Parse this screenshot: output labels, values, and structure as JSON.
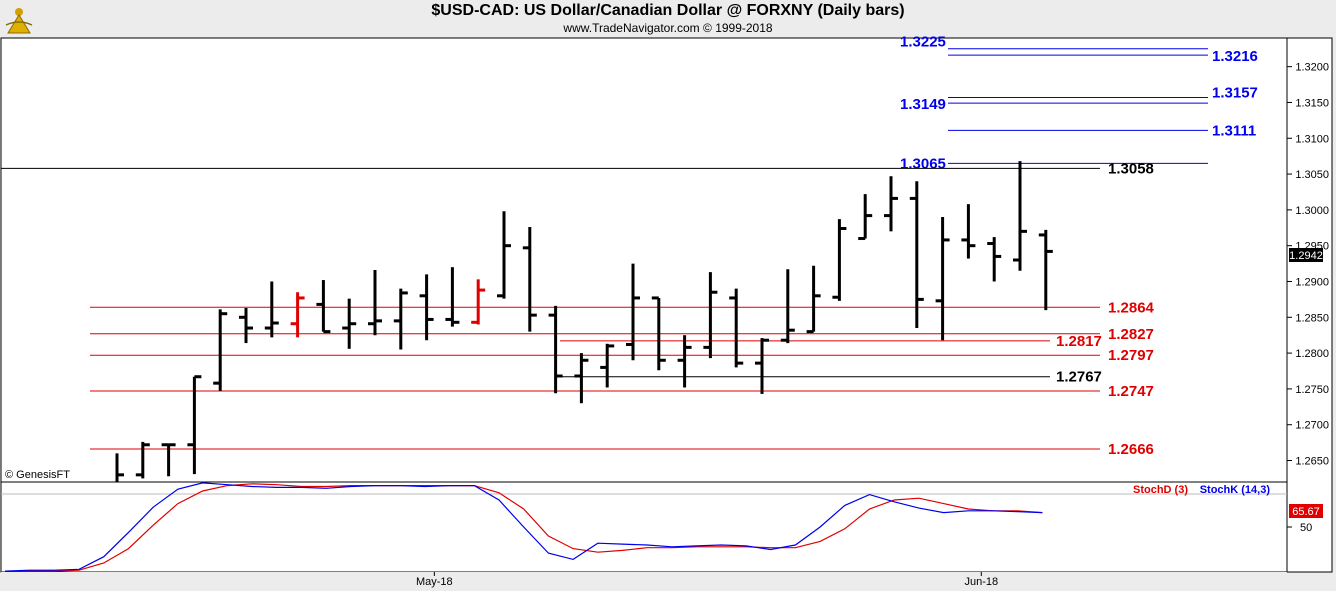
{
  "header": {
    "title": "$USD-CAD:  US Dollar/Canadian Dollar @ FORXNY  (Daily bars)",
    "subtitle": "www.TradeNavigator.com © 1999-2018"
  },
  "watermark": "© GenesisFT",
  "chart_data": [
    {
      "type": "ohlc",
      "title": "$USD-CAD:  US Dollar/Canadian Dollar @ FORXNY  (Daily bars)",
      "ylim": [
        1.262,
        1.324
      ],
      "yticks": [
        1.265,
        1.27,
        1.275,
        1.28,
        1.285,
        1.29,
        1.295,
        1.3,
        1.305,
        1.31,
        1.315,
        1.32
      ],
      "x_labels": [
        {
          "label": "May-18",
          "bar": 12.3
        },
        {
          "label": "Jun-18",
          "bar": 33.5
        }
      ],
      "last_price": "1.2942",
      "bars": [
        {
          "o": 1.26,
          "h": 1.266,
          "l": 1.26,
          "c": 1.263,
          "color": "#000000"
        },
        {
          "o": 1.263,
          "h": 1.2676,
          "l": 1.2625,
          "c": 1.2672,
          "color": "#000000"
        },
        {
          "o": 1.2672,
          "h": 1.2673,
          "l": 1.2628,
          "c": 1.2672,
          "color": "#000000"
        },
        {
          "o": 1.2672,
          "h": 1.2767,
          "l": 1.2631,
          "c": 1.2767,
          "color": "#000000"
        },
        {
          "o": 1.2758,
          "h": 1.2861,
          "l": 1.2747,
          "c": 1.2855,
          "color": "#000000"
        },
        {
          "o": 1.285,
          "h": 1.2863,
          "l": 1.2814,
          "c": 1.2835,
          "color": "#000000"
        },
        {
          "o": 1.2835,
          "h": 1.29,
          "l": 1.2822,
          "c": 1.2842,
          "color": "#000000"
        },
        {
          "o": 1.2841,
          "h": 1.2885,
          "l": 1.2822,
          "c": 1.2877,
          "color": "#E00000"
        },
        {
          "o": 1.2868,
          "h": 1.2902,
          "l": 1.283,
          "c": 1.283,
          "color": "#000000"
        },
        {
          "o": 1.2835,
          "h": 1.2876,
          "l": 1.2806,
          "c": 1.2841,
          "color": "#000000"
        },
        {
          "o": 1.2841,
          "h": 1.2916,
          "l": 1.2825,
          "c": 1.2845,
          "color": "#000000"
        },
        {
          "o": 1.2845,
          "h": 1.289,
          "l": 1.2805,
          "c": 1.2884,
          "color": "#000000"
        },
        {
          "o": 1.288,
          "h": 1.291,
          "l": 1.2818,
          "c": 1.2847,
          "color": "#000000"
        },
        {
          "o": 1.2847,
          "h": 1.292,
          "l": 1.2837,
          "c": 1.2843,
          "color": "#000000"
        },
        {
          "o": 1.2843,
          "h": 1.2903,
          "l": 1.284,
          "c": 1.2888,
          "color": "#E00000"
        },
        {
          "o": 1.288,
          "h": 1.2998,
          "l": 1.2876,
          "c": 1.295,
          "color": "#000000"
        },
        {
          "o": 1.2947,
          "h": 1.2976,
          "l": 1.283,
          "c": 1.2853,
          "color": "#000000"
        },
        {
          "o": 1.2853,
          "h": 1.2866,
          "l": 1.2744,
          "c": 1.2768,
          "color": "#000000"
        },
        {
          "o": 1.2768,
          "h": 1.28,
          "l": 1.273,
          "c": 1.279,
          "color": "#000000"
        },
        {
          "o": 1.278,
          "h": 1.2813,
          "l": 1.2752,
          "c": 1.281,
          "color": "#000000"
        },
        {
          "o": 1.2812,
          "h": 1.2925,
          "l": 1.279,
          "c": 1.2877,
          "color": "#000000"
        },
        {
          "o": 1.2877,
          "h": 1.2877,
          "l": 1.2776,
          "c": 1.279,
          "color": "#000000"
        },
        {
          "o": 1.279,
          "h": 1.2825,
          "l": 1.2752,
          "c": 1.2808,
          "color": "#000000"
        },
        {
          "o": 1.2808,
          "h": 1.2913,
          "l": 1.2793,
          "c": 1.2885,
          "color": "#000000"
        },
        {
          "o": 1.2877,
          "h": 1.289,
          "l": 1.278,
          "c": 1.2786,
          "color": "#000000"
        },
        {
          "o": 1.2786,
          "h": 1.2821,
          "l": 1.2743,
          "c": 1.2818,
          "color": "#000000"
        },
        {
          "o": 1.2818,
          "h": 1.2917,
          "l": 1.2814,
          "c": 1.2832,
          "color": "#000000"
        },
        {
          "o": 1.283,
          "h": 1.2922,
          "l": 1.283,
          "c": 1.288,
          "color": "#000000"
        },
        {
          "o": 1.2878,
          "h": 1.2987,
          "l": 1.2873,
          "c": 1.2974,
          "color": "#000000"
        },
        {
          "o": 1.296,
          "h": 1.3022,
          "l": 1.296,
          "c": 1.2992,
          "color": "#000000"
        },
        {
          "o": 1.2992,
          "h": 1.3047,
          "l": 1.297,
          "c": 1.3016,
          "color": "#000000"
        },
        {
          "o": 1.3016,
          "h": 1.304,
          "l": 1.2835,
          "c": 1.2875,
          "color": "#000000"
        },
        {
          "o": 1.2873,
          "h": 1.299,
          "l": 1.2818,
          "c": 1.2958,
          "color": "#000000"
        },
        {
          "o": 1.2958,
          "h": 1.3008,
          "l": 1.2932,
          "c": 1.295,
          "color": "#000000"
        },
        {
          "o": 1.2953,
          "h": 1.2962,
          "l": 1.29,
          "c": 1.2935,
          "color": "#000000"
        },
        {
          "o": 1.293,
          "h": 1.3068,
          "l": 1.2915,
          "c": 1.297,
          "color": "#000000"
        },
        {
          "o": 1.2965,
          "h": 1.2972,
          "l": 1.286,
          "c": 1.2942,
          "color": "#000000"
        }
      ],
      "levels": [
        {
          "price": 1.3225,
          "label": "1.3225",
          "color": "#0000EE"
        },
        {
          "price": 1.3216,
          "label": "1.3216",
          "color": "#0000EE"
        },
        {
          "price": 1.3149,
          "label": "1.3149",
          "color": "#0000EE"
        },
        {
          "price": 1.3157,
          "label": "1.3157",
          "color": "#0000EE"
        },
        {
          "price": 1.3111,
          "label": "1.3111",
          "color": "#0000EE"
        },
        {
          "price": 1.3065,
          "label": "1.3065",
          "color": "#0000EE"
        },
        {
          "price": 1.3058,
          "label": "1.3058",
          "color": "#000000"
        },
        {
          "price": 1.2864,
          "label": "1.2864",
          "color": "#E00000"
        },
        {
          "price": 1.2827,
          "label": "1.2827",
          "color": "#E00000"
        },
        {
          "price": 1.2817,
          "label": "1.2817",
          "color": "#E00000"
        },
        {
          "price": 1.2797,
          "label": "1.2797",
          "color": "#E00000"
        },
        {
          "price": 1.2767,
          "label": "1.2767",
          "color": "#000000"
        },
        {
          "price": 1.2747,
          "label": "1.2747",
          "color": "#E00000"
        },
        {
          "price": 1.2666,
          "label": "1.2666",
          "color": "#E00000"
        }
      ]
    },
    {
      "type": "line",
      "title": "",
      "ylim": [
        0,
        100
      ],
      "yticks": [
        50
      ],
      "last_value": "65.67",
      "series": [
        {
          "name": "StochD (3)",
          "color": "#E00000",
          "values": [
            1,
            1,
            1,
            2,
            10,
            26,
            52,
            76,
            90,
            96,
            98,
            97,
            95,
            95,
            96,
            96,
            96,
            96,
            96,
            96,
            88,
            70,
            40,
            26,
            22,
            24,
            27,
            27,
            28,
            28,
            28,
            27,
            27,
            34,
            48,
            70,
            80,
            82,
            76,
            70,
            68,
            68,
            66
          ]
        },
        {
          "name": "StochK (14,3)",
          "color": "#0000EE",
          "values": [
            1,
            2,
            2,
            3,
            17,
            44,
            72,
            92,
            99,
            97,
            95,
            94,
            94,
            93,
            95,
            96,
            96,
            95,
            96,
            96,
            80,
            50,
            21,
            14,
            32,
            31,
            30,
            28,
            29,
            30,
            29,
            25,
            30,
            50,
            74,
            86,
            78,
            71,
            66,
            68,
            68,
            67,
            66
          ]
        }
      ],
      "xlabels": [
        "StochD (3)",
        "StochK (14,3)"
      ]
    }
  ]
}
